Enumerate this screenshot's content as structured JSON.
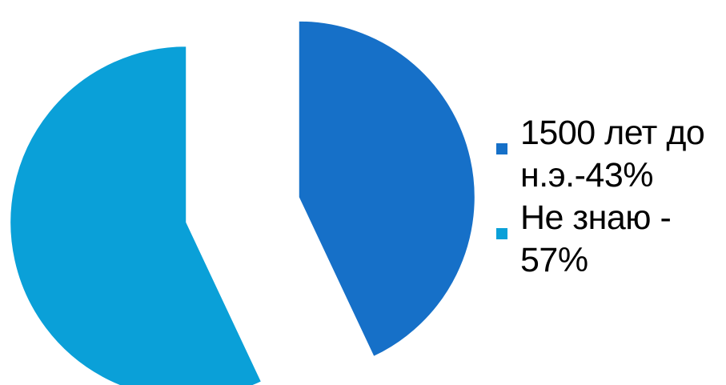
{
  "chart_data": {
    "type": "pie",
    "exploded": true,
    "start_angle": "12 o'clock, clockwise",
    "categories": [
      "1500 лет до н.э.-43%",
      "Не знаю - 57%"
    ],
    "values": [
      43,
      57
    ],
    "colors": [
      "#1670C8",
      "#0AA0D8"
    ],
    "legend_position": "right",
    "title": ""
  }
}
